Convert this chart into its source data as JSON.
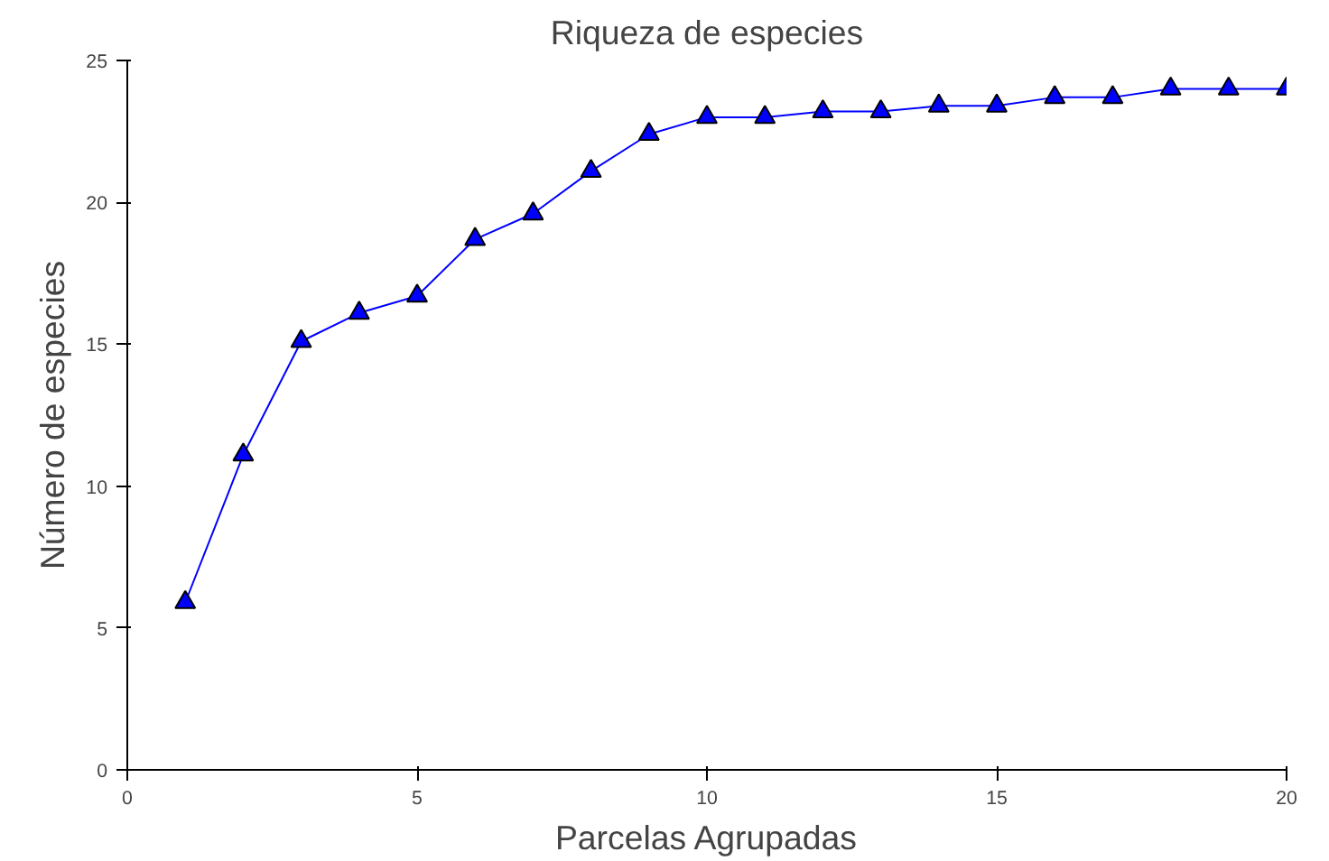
{
  "chart_data": {
    "type": "line",
    "title": "Riqueza de especies",
    "xlabel": "Parcelas Agrupadas",
    "ylabel": "Número de especies",
    "x": [
      1,
      2,
      3,
      4,
      5,
      6,
      7,
      8,
      9,
      10,
      11,
      12,
      13,
      14,
      15,
      16,
      17,
      18,
      19,
      20
    ],
    "series": [
      {
        "color": "#0000ff",
        "values": [
          5.9,
          11.1,
          15.1,
          16.1,
          16.7,
          18.7,
          19.6,
          21.1,
          22.4,
          23.0,
          23.0,
          23.2,
          23.2,
          23.4,
          23.4,
          23.7,
          23.7,
          24.0,
          24.0,
          24.0
        ]
      }
    ],
    "xlim": [
      0,
      20
    ],
    "ylim": [
      0,
      25
    ],
    "xticks": [
      0,
      5,
      10,
      15,
      20
    ],
    "yticks": [
      0,
      5,
      10,
      15,
      20,
      25
    ],
    "marker": "triangle",
    "line_style": "solid",
    "grid": false
  }
}
